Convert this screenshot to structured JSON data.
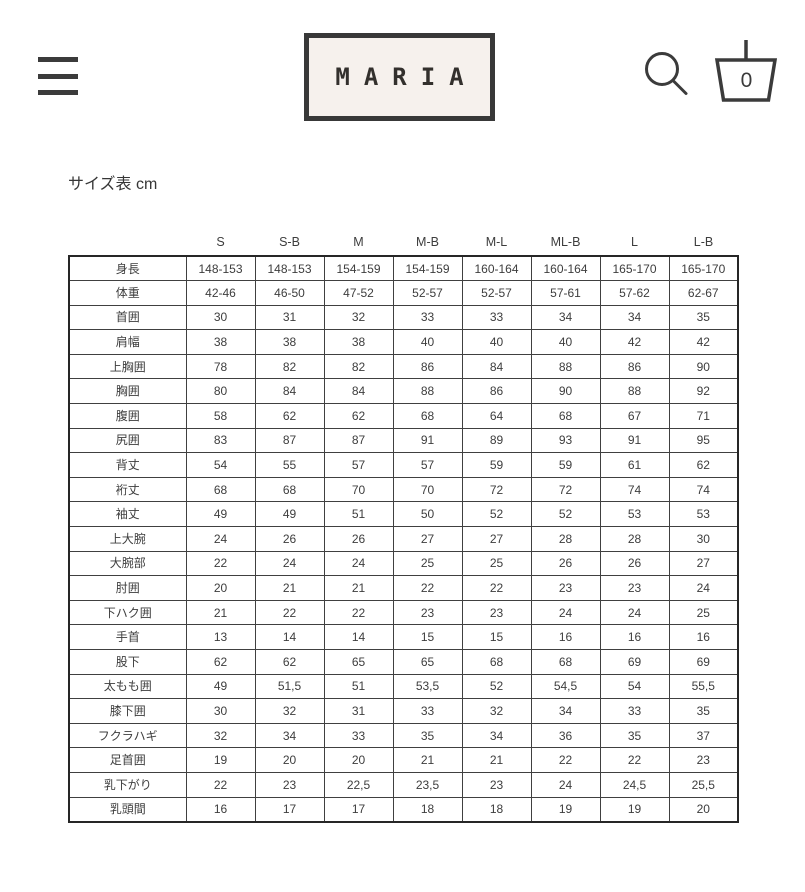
{
  "header": {
    "logo_text": "MARIA",
    "cart_count": "0",
    "icons": {
      "menu": "hamburger-icon",
      "search": "search-icon",
      "cart": "basket-icon"
    }
  },
  "page": {
    "title": "サイズ表 cm"
  },
  "colors": {
    "ink": "#3b3b3b",
    "logo_background": "#f6f1ed",
    "table_outer_border": "#262626",
    "table_inner_border": "#404040"
  },
  "table": {
    "size_headers": [
      "S",
      "S-B",
      "M",
      "M-B",
      "M-L",
      "ML-B",
      "L",
      "L-B"
    ],
    "rows": [
      {
        "label": "身長",
        "values": [
          "148-153",
          "148-153",
          "154-159",
          "154-159",
          "160-164",
          "160-164",
          "165-170",
          "165-170"
        ]
      },
      {
        "label": "体重",
        "values": [
          "42-46",
          "46-50",
          "47-52",
          "52-57",
          "52-57",
          "57-61",
          "57-62",
          "62-67"
        ]
      },
      {
        "label": "首囲",
        "values": [
          "30",
          "31",
          "32",
          "33",
          "33",
          "34",
          "34",
          "35"
        ]
      },
      {
        "label": "肩幅",
        "values": [
          "38",
          "38",
          "38",
          "40",
          "40",
          "40",
          "42",
          "42"
        ]
      },
      {
        "label": "上胸囲",
        "values": [
          "78",
          "82",
          "82",
          "86",
          "84",
          "88",
          "86",
          "90"
        ]
      },
      {
        "label": "胸囲",
        "values": [
          "80",
          "84",
          "84",
          "88",
          "86",
          "90",
          "88",
          "92"
        ]
      },
      {
        "label": "腹囲",
        "values": [
          "58",
          "62",
          "62",
          "68",
          "64",
          "68",
          "67",
          "71"
        ]
      },
      {
        "label": "尻囲",
        "values": [
          "83",
          "87",
          "87",
          "91",
          "89",
          "93",
          "91",
          "95"
        ]
      },
      {
        "label": "背丈",
        "values": [
          "54",
          "55",
          "57",
          "57",
          "59",
          "59",
          "61",
          "62"
        ]
      },
      {
        "label": "裄丈",
        "values": [
          "68",
          "68",
          "70",
          "70",
          "72",
          "72",
          "74",
          "74"
        ]
      },
      {
        "label": "袖丈",
        "values": [
          "49",
          "49",
          "51",
          "50",
          "52",
          "52",
          "53",
          "53"
        ]
      },
      {
        "label": "上大腕",
        "values": [
          "24",
          "26",
          "26",
          "27",
          "27",
          "28",
          "28",
          "30"
        ]
      },
      {
        "label": "大腕部",
        "values": [
          "22",
          "24",
          "24",
          "25",
          "25",
          "26",
          "26",
          "27"
        ]
      },
      {
        "label": "肘囲",
        "values": [
          "20",
          "21",
          "21",
          "22",
          "22",
          "23",
          "23",
          "24"
        ]
      },
      {
        "label": "下ハク囲",
        "values": [
          "21",
          "22",
          "22",
          "23",
          "23",
          "24",
          "24",
          "25"
        ]
      },
      {
        "label": "手首",
        "values": [
          "13",
          "14",
          "14",
          "15",
          "15",
          "16",
          "16",
          "16"
        ]
      },
      {
        "label": "股下",
        "values": [
          "62",
          "62",
          "65",
          "65",
          "68",
          "68",
          "69",
          "69"
        ]
      },
      {
        "label": "太もも囲",
        "values": [
          "49",
          "51,5",
          "51",
          "53,5",
          "52",
          "54,5",
          "54",
          "55,5"
        ]
      },
      {
        "label": "膝下囲",
        "values": [
          "30",
          "32",
          "31",
          "33",
          "32",
          "34",
          "33",
          "35"
        ]
      },
      {
        "label": "フクラハギ",
        "values": [
          "32",
          "34",
          "33",
          "35",
          "34",
          "36",
          "35",
          "37"
        ]
      },
      {
        "label": "足首囲",
        "values": [
          "19",
          "20",
          "20",
          "21",
          "21",
          "22",
          "22",
          "23"
        ]
      },
      {
        "label": "乳下がり",
        "values": [
          "22",
          "23",
          "22,5",
          "23,5",
          "23",
          "24",
          "24,5",
          "25,5"
        ]
      },
      {
        "label": "乳頭間",
        "values": [
          "16",
          "17",
          "17",
          "18",
          "18",
          "19",
          "19",
          "20"
        ]
      }
    ]
  }
}
